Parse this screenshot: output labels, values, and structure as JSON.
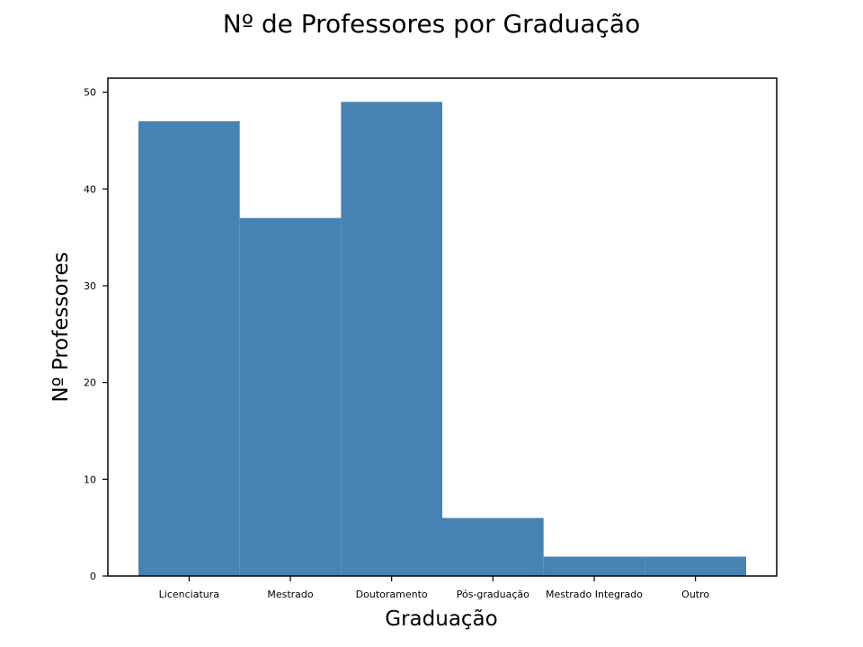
{
  "chart_data": {
    "type": "bar",
    "title": "Nº de Professores por Graduação",
    "xlabel": "Graduação",
    "ylabel": "Nº Professores",
    "categories": [
      "Licenciatura",
      "Mestrado",
      "Doutoramento",
      "Pós-graduação",
      "Mestrado Integrado",
      "Outro"
    ],
    "values": [
      47,
      37,
      49,
      6,
      2,
      2
    ],
    "ylim": [
      0,
      51.45
    ],
    "yticks": [
      "0",
      "10",
      "20",
      "30",
      "40",
      "50"
    ],
    "grid": false,
    "legend": "none",
    "colors": {
      "bar": "#4682b4",
      "axis": "#000000",
      "background": "#ffffff"
    }
  }
}
